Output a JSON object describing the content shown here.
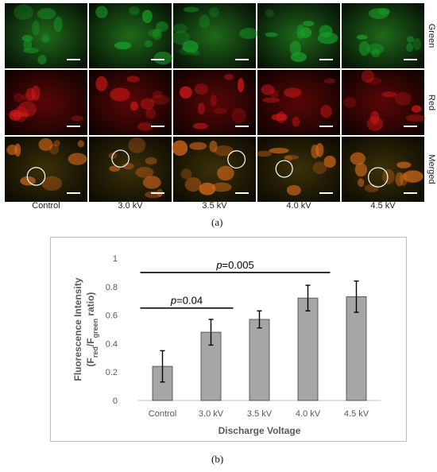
{
  "figure": {
    "panel_a_label": "(a)",
    "panel_b_label": "(b)",
    "micrographs": {
      "rows": [
        "Green",
        "Red",
        "Merged"
      ],
      "columns": [
        "Control",
        "3.0 kV",
        "3.5 kV",
        "4.0 kV",
        "4.5 kV"
      ],
      "row_tints": {
        "Green": "#18a02a",
        "Red": "#d81818",
        "Merged": "#d86a1c"
      }
    }
  },
  "chart_data": {
    "type": "bar",
    "categories": [
      "Control",
      "3.0 kV",
      "3.5 kV",
      "4.0 kV",
      "4.5 kV"
    ],
    "values": [
      0.24,
      0.48,
      0.57,
      0.72,
      0.73
    ],
    "errors": [
      0.11,
      0.09,
      0.06,
      0.09,
      0.11
    ],
    "ylim": [
      0,
      1
    ],
    "yticks": [
      "0",
      "0.2",
      "0.4",
      "0.6",
      "0.8",
      "1"
    ],
    "xlabel": "Discharge Voltage",
    "ylabel_line1": "Fluorescence Intensity",
    "ylabel_line2": "(Fred/Fgreen ratio)",
    "bar_color": "#a6a6a6",
    "grid": false,
    "annotations": [
      {
        "text_italic": "p",
        "text": "=0.04",
        "from": "Control",
        "to": "3.0 kV",
        "y": 0.65
      },
      {
        "text_italic": "p",
        "text": "=0.005",
        "from": "Control",
        "to": "4.0 kV",
        "y": 0.9
      }
    ]
  }
}
